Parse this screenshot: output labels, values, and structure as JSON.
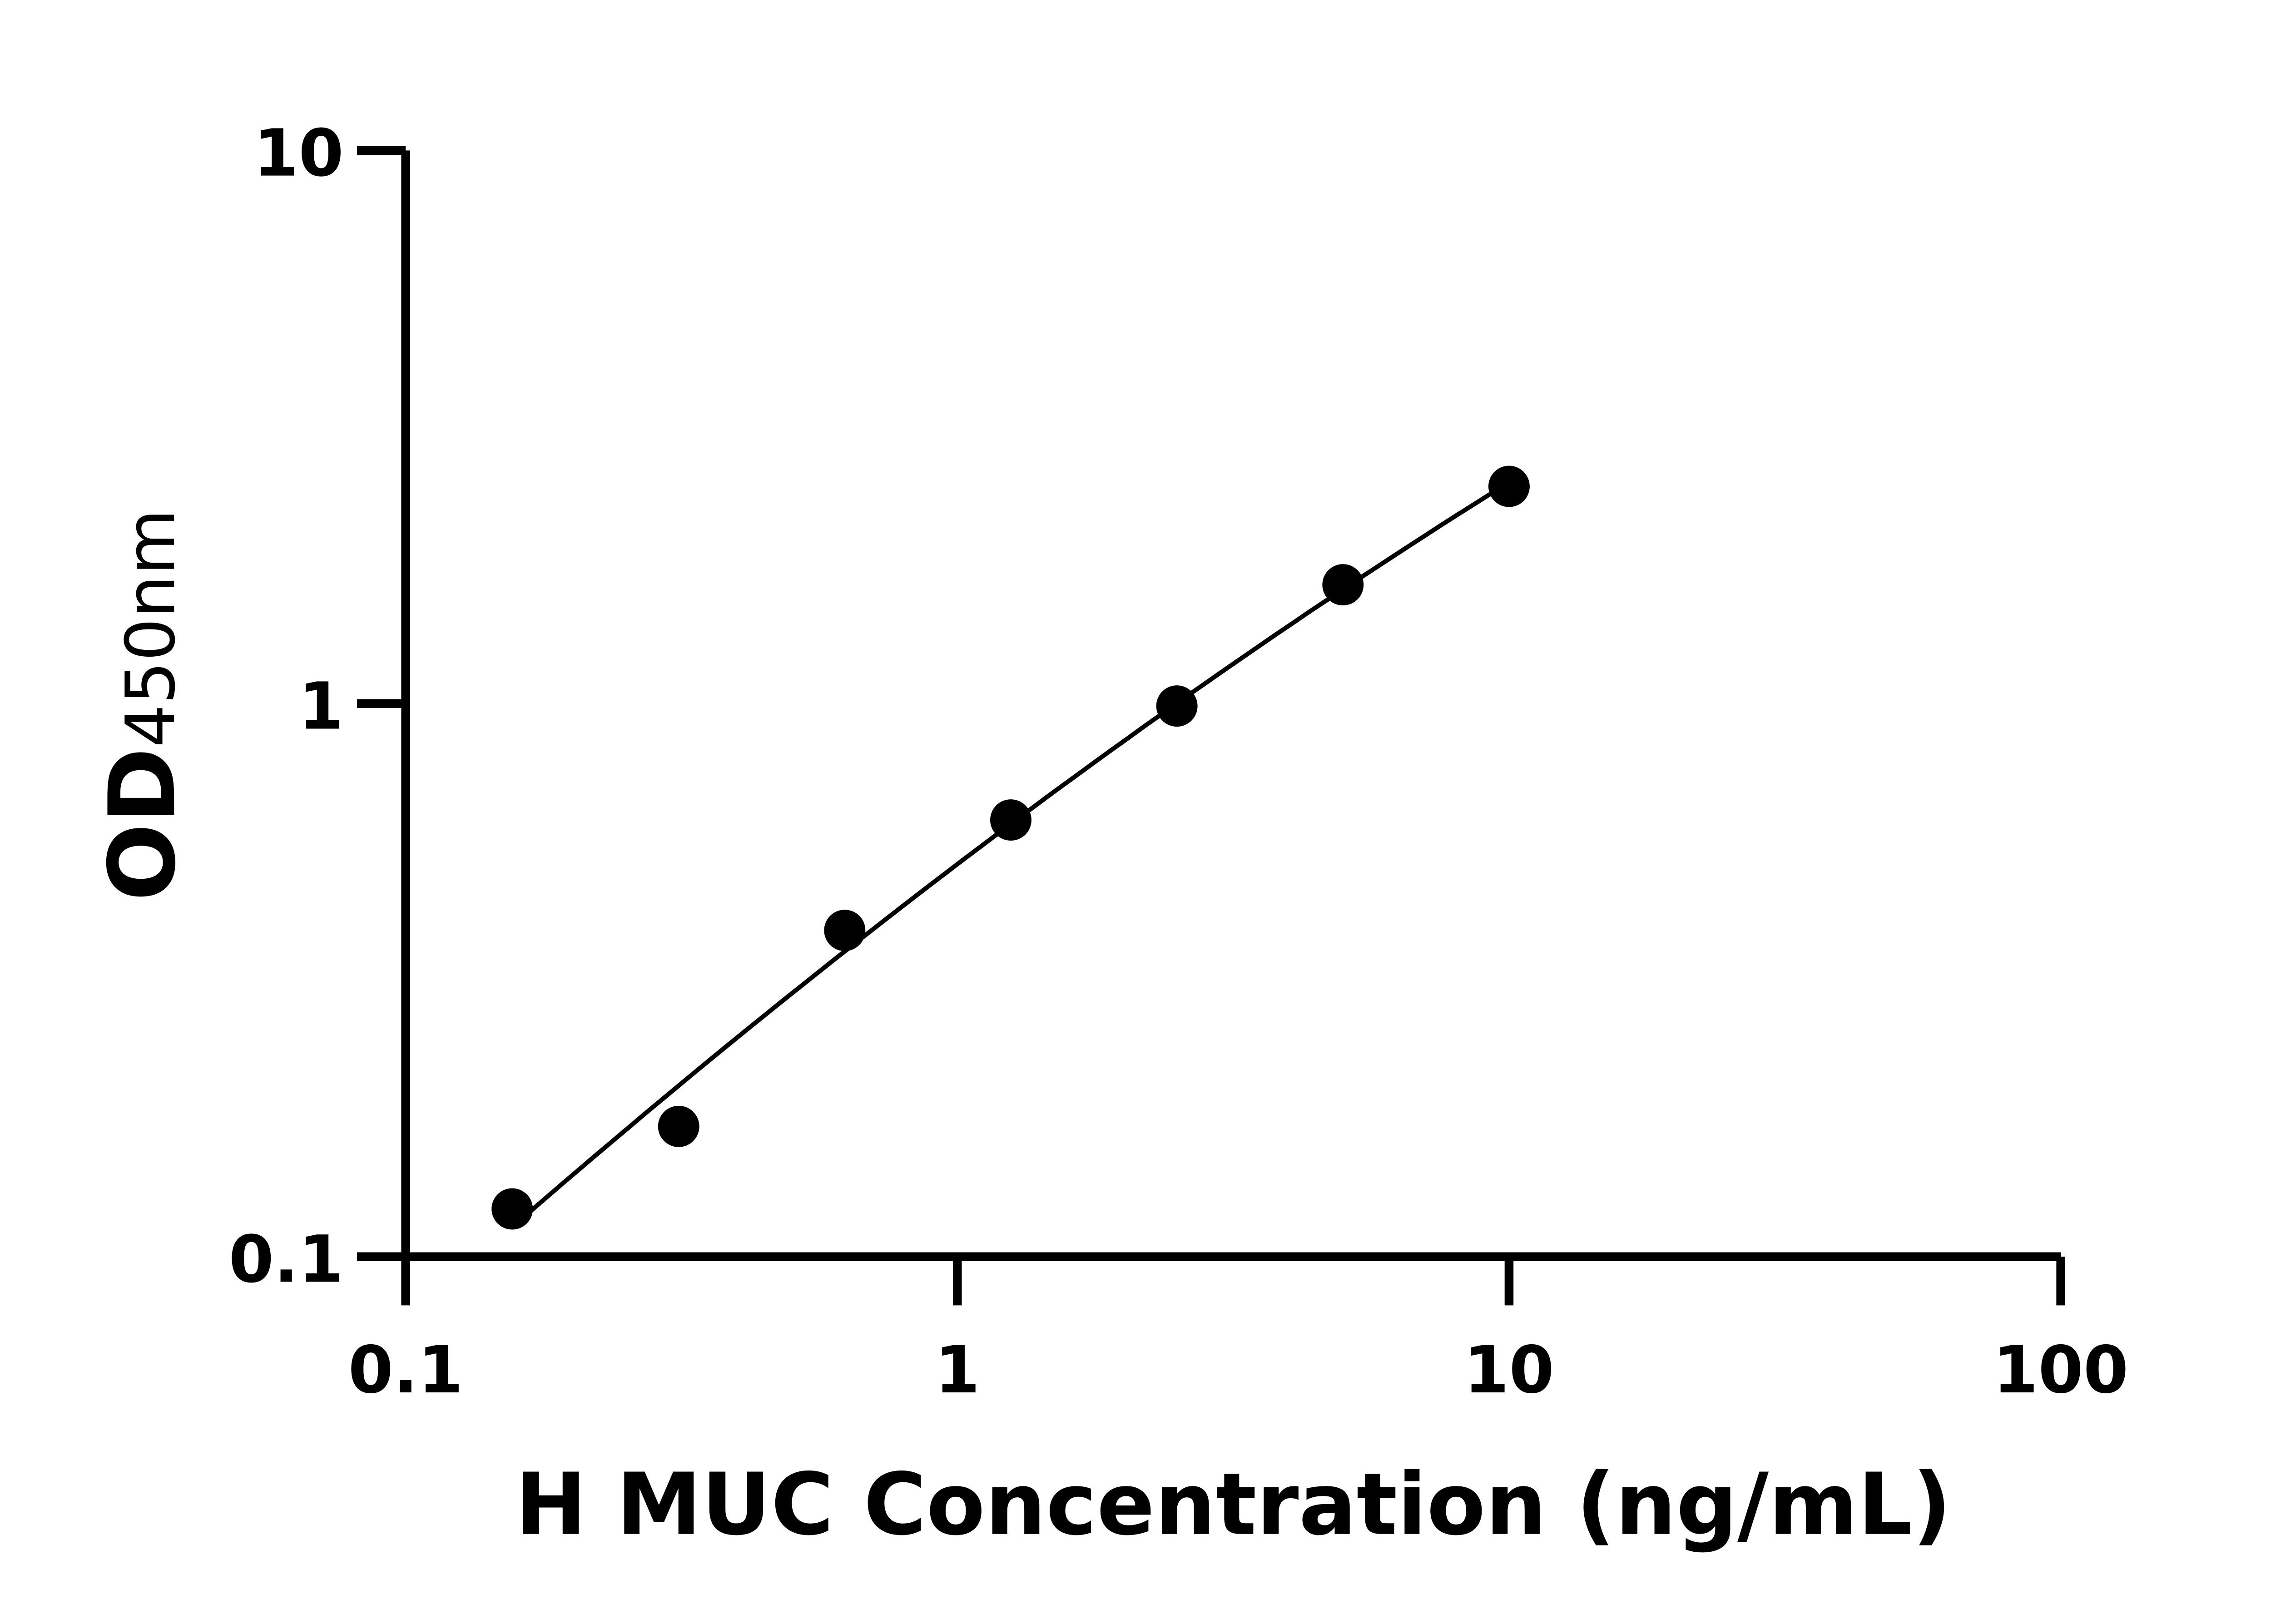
{
  "chart_data": {
    "type": "scatter",
    "title": "",
    "xlabel": "H MUC Concentration (ng/mL)",
    "ylabel_main": "OD",
    "ylabel_sub": "450nm",
    "x_scale": "log",
    "y_scale": "log",
    "xlim": [
      0.1,
      100
    ],
    "ylim": [
      0.1,
      10
    ],
    "x_ticks": [
      "0.1",
      "1",
      "10",
      "100"
    ],
    "y_ticks": [
      "0.1",
      "1",
      "10"
    ],
    "grid": false,
    "fit_line": true,
    "x": [
      0.156,
      0.3125,
      0.625,
      1.25,
      2.5,
      5,
      10
    ],
    "y": [
      0.122,
      0.172,
      0.389,
      0.616,
      0.99,
      1.64,
      2.47
    ],
    "color": "#000000"
  }
}
